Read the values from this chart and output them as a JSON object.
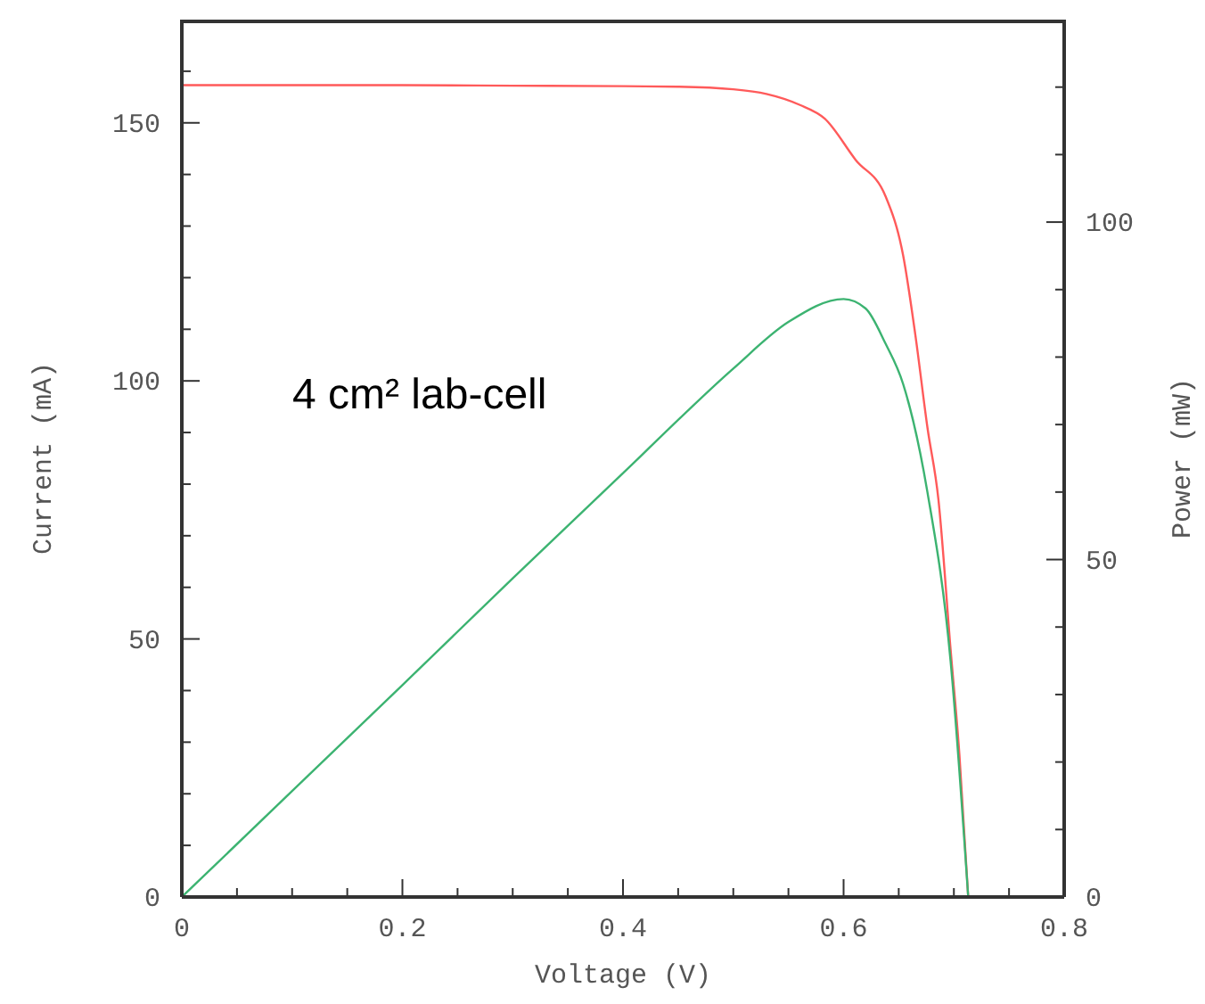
{
  "chart_data": {
    "type": "line",
    "xlabel": "Voltage (V)",
    "ylabel": "Current (mA)",
    "y2label": "Power (mW)",
    "annotations": [
      "4 cm² lab-cell"
    ],
    "xlim": [
      0,
      0.8
    ],
    "xticks": [
      0,
      {
        "value": 0.05,
        "label": null
      },
      {
        "value": 0.1,
        "label": null
      },
      {
        "value": 0.15,
        "label": null
      },
      0.2,
      {
        "value": 0.25,
        "label": null
      },
      {
        "value": 0.3,
        "label": null
      },
      {
        "value": 0.35,
        "label": null
      },
      0.4,
      {
        "value": 0.45,
        "label": null
      },
      {
        "value": 0.5,
        "label": null
      },
      {
        "value": 0.55,
        "label": null
      },
      0.6,
      {
        "value": 0.65,
        "label": null
      },
      {
        "value": 0.7,
        "label": null
      },
      {
        "value": 0.75,
        "label": null
      },
      0.8
    ],
    "ylim": [
      0,
      170
    ],
    "yticks": [
      0,
      {
        "value": 10,
        "label": null
      },
      {
        "value": 20,
        "label": null
      },
      {
        "value": 30,
        "label": null
      },
      {
        "value": 40,
        "label": null
      },
      50,
      {
        "value": 60,
        "label": null
      },
      {
        "value": 70,
        "label": null
      },
      {
        "value": 80,
        "label": null
      },
      {
        "value": 90,
        "label": null
      },
      100,
      {
        "value": 110,
        "label": null
      },
      {
        "value": 120,
        "label": null
      },
      {
        "value": 130,
        "label": null
      },
      {
        "value": 140,
        "label": null
      },
      150,
      {
        "value": 160,
        "label": null
      }
    ],
    "y2lim": [
      0,
      130
    ],
    "y2ticks": [
      0,
      {
        "value": 10,
        "label": null
      },
      {
        "value": 20,
        "label": null
      },
      {
        "value": 30,
        "label": null
      },
      {
        "value": 40,
        "label": null
      },
      50,
      {
        "value": 60,
        "label": null
      },
      {
        "value": 70,
        "label": null
      },
      {
        "value": 80,
        "label": null
      },
      {
        "value": 90,
        "label": null
      },
      100,
      {
        "value": 110,
        "label": null
      },
      {
        "value": 120,
        "label": null
      }
    ],
    "marker": "none",
    "line_style": "solid",
    "series": [
      {
        "color": "#ff5a5a",
        "x": [
          0,
          0.1,
          0.2,
          0.3,
          0.4,
          0.45,
          0.5,
          0.53,
          0.56,
          0.583,
          0.611,
          0.638,
          0.654,
          0.665,
          0.676,
          0.686,
          0.697,
          0.705,
          0.713
        ],
        "values": [
          157.3,
          157.3,
          157.3,
          157.2,
          157.1,
          157,
          156.5,
          155.6,
          153.5,
          150.8,
          142.8,
          135.8,
          124.3,
          109,
          91,
          77,
          48,
          27.6,
          0
        ]
      },
      {
        "color": "#3cb371",
        "axis": "y2",
        "x": [
          0,
          0.1,
          0.2,
          0.3,
          0.4,
          0.5,
          0.55,
          0.6,
          0.62,
          0.638,
          0.654,
          0.676,
          0.697,
          0.713
        ],
        "values": [
          0,
          15.7,
          31.4,
          47.2,
          62.8,
          78.3,
          85.2,
          88.6,
          87.2,
          82,
          76,
          60,
          35,
          0
        ]
      }
    ]
  }
}
